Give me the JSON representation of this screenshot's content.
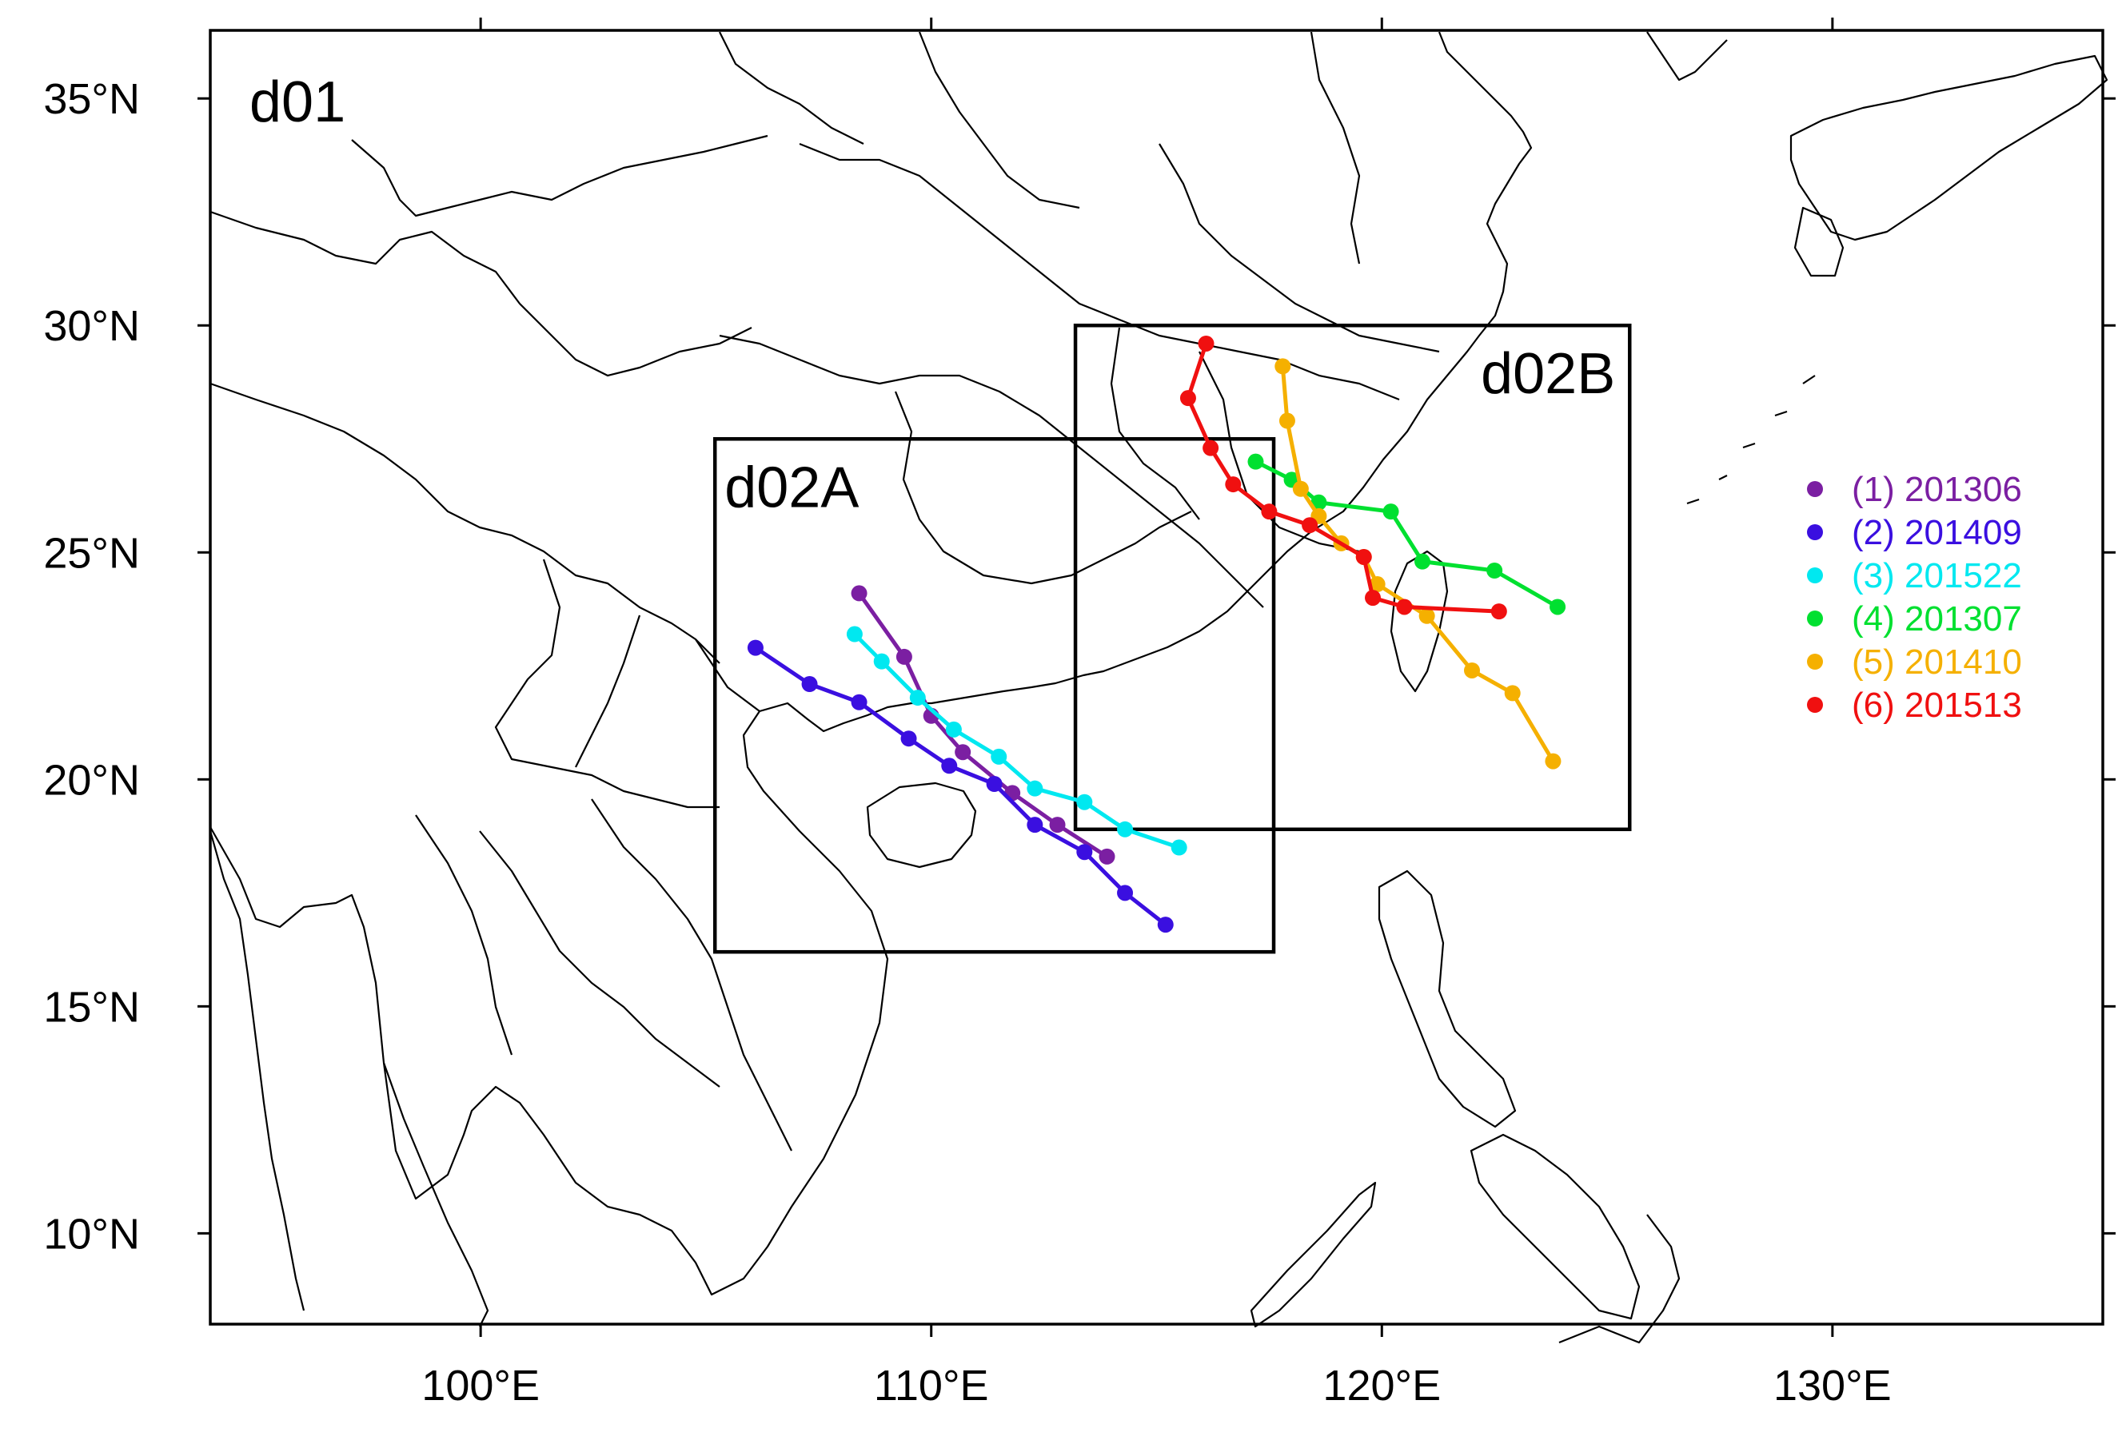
{
  "map": {
    "domain_label": "d01",
    "lon_range": [
      94.0,
      136.0
    ],
    "lat_range": [
      8.0,
      36.5
    ],
    "x_ticks": [
      {
        "lon": 100,
        "label": "100°E"
      },
      {
        "lon": 110,
        "label": "110°E"
      },
      {
        "lon": 120,
        "label": "120°E"
      },
      {
        "lon": 130,
        "label": "130°E"
      }
    ],
    "y_ticks": [
      {
        "lat": 35,
        "label": "35°N"
      },
      {
        "lat": 30,
        "label": "30°N"
      },
      {
        "lat": 25,
        "label": "25°N"
      },
      {
        "lat": 20,
        "label": "20°N"
      },
      {
        "lat": 15,
        "label": "15°N"
      },
      {
        "lat": 10,
        "label": "10°N"
      }
    ],
    "nested_domains": [
      {
        "name": "d02A",
        "lon_min": 105.2,
        "lon_max": 117.6,
        "lat_min": 16.2,
        "lat_max": 27.5
      },
      {
        "name": "d02B",
        "lon_min": 113.2,
        "lon_max": 125.5,
        "lat_min": 18.9,
        "lat_max": 30.0
      }
    ]
  },
  "tracks": [
    {
      "label": "(1) 201306",
      "color": "#7b1fa2",
      "points": [
        [
          108.4,
          24.1
        ],
        [
          109.4,
          22.7
        ],
        [
          110.0,
          21.4
        ],
        [
          110.7,
          20.6
        ],
        [
          111.8,
          19.7
        ],
        [
          112.8,
          19.0
        ],
        [
          113.9,
          18.3
        ]
      ]
    },
    {
      "label": "(2) 201409",
      "color": "#3a0fe0",
      "points": [
        [
          106.1,
          22.9
        ],
        [
          107.3,
          22.1
        ],
        [
          108.4,
          21.7
        ],
        [
          109.5,
          20.9
        ],
        [
          110.4,
          20.3
        ],
        [
          111.4,
          19.9
        ],
        [
          112.3,
          19.0
        ],
        [
          113.4,
          18.4
        ],
        [
          114.3,
          17.5
        ],
        [
          115.2,
          16.8
        ]
      ]
    },
    {
      "label": "(3) 201522",
      "color": "#00e8f0",
      "points": [
        [
          108.3,
          23.2
        ],
        [
          108.9,
          22.6
        ],
        [
          109.7,
          21.8
        ],
        [
          110.5,
          21.1
        ],
        [
          111.5,
          20.5
        ],
        [
          112.3,
          19.8
        ],
        [
          113.4,
          19.5
        ],
        [
          114.3,
          18.9
        ],
        [
          115.5,
          18.5
        ]
      ]
    },
    {
      "label": "(4) 201307",
      "color": "#00e030",
      "points": [
        [
          117.2,
          27.0
        ],
        [
          118.0,
          26.6
        ],
        [
          118.6,
          26.1
        ],
        [
          120.2,
          25.9
        ],
        [
          120.9,
          24.8
        ],
        [
          122.5,
          24.6
        ],
        [
          123.9,
          23.8
        ]
      ]
    },
    {
      "label": "(5) 201410",
      "color": "#f5b000",
      "points": [
        [
          117.8,
          29.1
        ],
        [
          117.9,
          27.9
        ],
        [
          118.2,
          26.4
        ],
        [
          118.6,
          25.8
        ],
        [
          119.1,
          25.2
        ],
        [
          119.6,
          24.9
        ],
        [
          119.9,
          24.3
        ],
        [
          121.0,
          23.6
        ],
        [
          122.0,
          22.4
        ],
        [
          122.9,
          21.9
        ],
        [
          123.8,
          20.4
        ]
      ]
    },
    {
      "label": "(6) 201513",
      "color": "#f01010",
      "points": [
        [
          116.1,
          29.6
        ],
        [
          115.7,
          28.4
        ],
        [
          116.2,
          27.3
        ],
        [
          116.7,
          26.5
        ],
        [
          117.5,
          25.9
        ],
        [
          118.4,
          25.6
        ],
        [
          119.6,
          24.9
        ],
        [
          119.8,
          24.0
        ],
        [
          120.5,
          23.8
        ],
        [
          122.6,
          23.7
        ]
      ]
    }
  ]
}
